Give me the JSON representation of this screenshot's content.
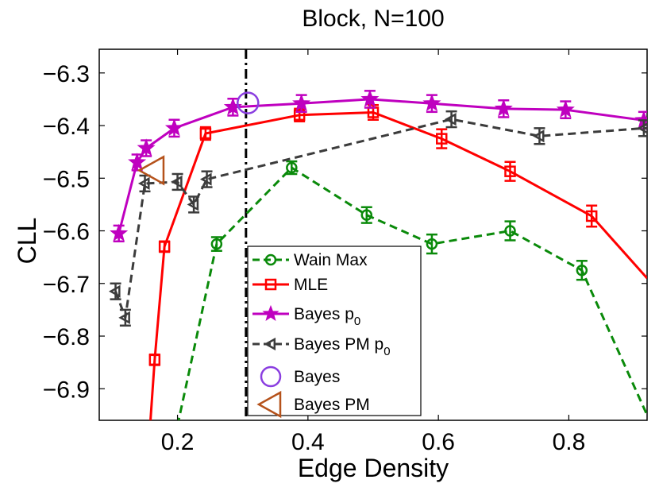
{
  "chart_data": {
    "type": "line",
    "title": "Block, N=100",
    "xlabel": "Edge Density",
    "ylabel": "CLL",
    "xlim": [
      0.08,
      0.92
    ],
    "ylim": [
      -6.96,
      -6.255
    ],
    "xticks": [
      0.2,
      0.4,
      0.6,
      0.8
    ],
    "xtick_labels": [
      "0.2",
      "0.4",
      "0.6",
      "0.8"
    ],
    "yticks": [
      -6.3,
      -6.4,
      -6.5,
      -6.6,
      -6.7,
      -6.8,
      -6.9
    ],
    "ytick_labels": [
      "−6.3",
      "−6.4",
      "−6.5",
      "−6.6",
      "−6.7",
      "−6.8",
      "−6.9"
    ],
    "vline": {
      "x": 0.305,
      "style": "dash-dot",
      "color": "#000000"
    },
    "series": [
      {
        "name": "Wain Max",
        "color": "#0a8a0a",
        "marker": "circle",
        "dash": "dashed",
        "x": [
          0.26,
          0.375,
          0.49,
          0.59,
          0.71,
          0.82
        ],
        "y": [
          -6.625,
          -6.48,
          -6.57,
          -6.625,
          -6.6,
          -6.675
        ],
        "err": [
          0.013,
          0.012,
          0.015,
          0.018,
          0.018,
          0.018
        ],
        "line_start": [
          0.2,
          -6.97
        ],
        "line_end": [
          0.92,
          -6.95
        ]
      },
      {
        "name": "MLE",
        "color": "#ff0000",
        "marker": "square",
        "dash": "solid",
        "x": [
          0.165,
          0.18,
          0.243,
          0.387,
          0.5,
          0.605,
          0.71,
          0.835
        ],
        "y": [
          -6.845,
          -6.63,
          -6.415,
          -6.38,
          -6.375,
          -6.425,
          -6.487,
          -6.572
        ],
        "err": [
          0.01,
          0.01,
          0.012,
          0.012,
          0.014,
          0.018,
          0.018,
          0.02
        ],
        "line_start": [
          0.158,
          -6.97
        ],
        "line_end": [
          0.92,
          -6.69
        ]
      },
      {
        "name": "Bayes p0",
        "legend_main": "Bayes p",
        "legend_sub": "0",
        "color": "#bf00bf",
        "marker": "star",
        "dash": "solid",
        "x": [
          0.11,
          0.138,
          0.152,
          0.195,
          0.285,
          0.39,
          0.495,
          0.59,
          0.7,
          0.795,
          0.915
        ],
        "y": [
          -6.605,
          -6.47,
          -6.443,
          -6.405,
          -6.365,
          -6.358,
          -6.35,
          -6.358,
          -6.368,
          -6.37,
          -6.39
        ],
        "err": [
          0.015,
          0.015,
          0.015,
          0.016,
          0.016,
          0.016,
          0.016,
          0.016,
          0.016,
          0.016,
          0.016
        ],
        "line_end": [
          0.92,
          -6.388
        ]
      },
      {
        "name": "Bayes PM p0",
        "legend_main": "Bayes PM p",
        "legend_sub": "0",
        "color": "#3c3c3c",
        "marker": "triangle-left",
        "dash": "dashed",
        "x": [
          0.105,
          0.12,
          0.15,
          0.2,
          0.225,
          0.245,
          0.62,
          0.755,
          0.915
        ],
        "y": [
          -6.715,
          -6.765,
          -6.51,
          -6.507,
          -6.55,
          -6.502,
          -6.388,
          -6.42,
          -6.405
        ],
        "err": [
          0.015,
          0.015,
          0.015,
          0.015,
          0.015,
          0.015,
          0.015,
          0.015,
          0.015
        ],
        "line_end": [
          0.92,
          -6.405
        ]
      }
    ],
    "highlight_points": [
      {
        "name": "Bayes",
        "x": 0.308,
        "y": -6.357,
        "marker": "circle",
        "color": "#8a3ee0"
      },
      {
        "name": "Bayes PM",
        "x": 0.162,
        "y": -6.485,
        "marker": "triangle-left",
        "color": "#b5521b"
      }
    ],
    "legend": {
      "position": "center-bottom",
      "entries": [
        "Wain Max",
        "MLE",
        "Bayes p0",
        "Bayes PM p0",
        "Bayes",
        "Bayes PM"
      ]
    }
  }
}
